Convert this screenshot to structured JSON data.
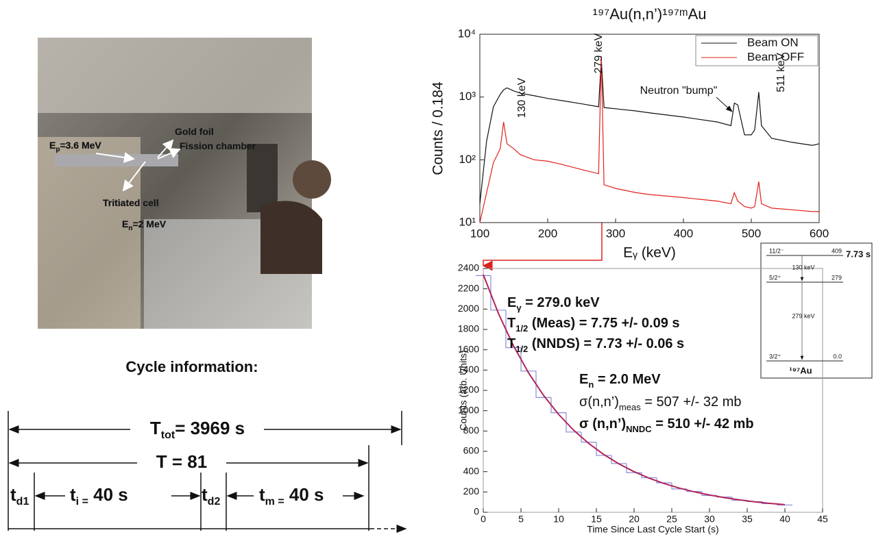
{
  "photo": {
    "labels": [
      [
        "E",
        "p",
        "=3.6 MeV"
      ],
      [
        "Gold foil"
      ],
      [
        "Fission chamber"
      ],
      [
        "Tritiated cell"
      ],
      [
        "E",
        "n",
        "=2 MeV"
      ]
    ]
  },
  "cycle": {
    "title": "Cycle information:",
    "total": [
      "T",
      "tot",
      "= 3969 s"
    ],
    "period": [
      "T = 81"
    ],
    "td1": [
      "t",
      "d1"
    ],
    "ti": [
      "t",
      "i =",
      " 40 s"
    ],
    "td2": [
      "t",
      "d2"
    ],
    "tm": [
      "t",
      "m =",
      " 40 s"
    ]
  },
  "chart_data": [
    {
      "type": "line",
      "title": "¹⁹⁷Au(n,n’)¹⁹⁷ᵐAu",
      "x_label": "Eᵧ (keV)",
      "y_label": "Counts / 0.184",
      "log_y": true,
      "legend": "top-right",
      "x": [
        100,
        110,
        120,
        130,
        135,
        140,
        150,
        160,
        180,
        200,
        220,
        250,
        275,
        279,
        283,
        300,
        330,
        350,
        400,
        450,
        470,
        475,
        480,
        490,
        500,
        505,
        511,
        515,
        530,
        560,
        590,
        600
      ],
      "series": [
        {
          "name": "Beam ON",
          "color": "#111111",
          "values": [
            20,
            200,
            700,
            1100,
            1300,
            1400,
            1250,
            1150,
            1050,
            950,
            880,
            780,
            700,
            4000,
            680,
            650,
            600,
            560,
            480,
            400,
            350,
            800,
            750,
            250,
            250,
            300,
            1200,
            350,
            220,
            190,
            170,
            180
          ]
        },
        {
          "name": "Beam OFF",
          "color": "#e0201b",
          "values": [
            10,
            30,
            90,
            150,
            400,
            180,
            150,
            120,
            100,
            95,
            85,
            70,
            60,
            4500,
            40,
            35,
            30,
            28,
            25,
            22,
            20,
            30,
            22,
            18,
            17,
            18,
            45,
            20,
            17,
            16,
            15,
            15
          ]
        }
      ],
      "xlim": [
        100,
        600
      ],
      "xticks": [
        100,
        200,
        300,
        400,
        500,
        600
      ],
      "ylim": [
        10,
        10000
      ],
      "yticks": [
        {
          "value": 10,
          "label": "10¹"
        },
        {
          "value": 100,
          "label": "10²"
        },
        {
          "value": 1000,
          "label": "10³"
        },
        {
          "value": 10000,
          "label": "10⁴"
        }
      ],
      "annotations": [
        {
          "text": "279 keV",
          "color": "#2a2a9a"
        },
        {
          "text": "130 keV",
          "color": "#2a2a9a"
        },
        {
          "text": "Neutron \"bump\"",
          "color": "#111111"
        },
        {
          "text": "511 keV",
          "color": "#111111"
        }
      ]
    },
    {
      "type": "line",
      "x_label": "Time Since Last Cycle Start (s)",
      "y_label": "Counts (arb. Units)",
      "x": [
        0,
        2,
        4,
        6,
        8,
        10,
        12,
        14,
        16,
        18,
        20,
        22,
        24,
        26,
        28,
        30,
        32,
        34,
        36,
        38,
        40
      ],
      "series": [
        {
          "color": "#8a8ad6",
          "style": "step",
          "values": [
            2330,
            1990,
            1620,
            1390,
            1130,
            980,
            790,
            690,
            560,
            480,
            390,
            340,
            290,
            230,
            205,
            165,
            150,
            118,
            105,
            85,
            72
          ]
        },
        {
          "color": "#b0245a",
          "style": "line",
          "values": [
            2340,
            1959,
            1640,
            1373,
            1150,
            963,
            807,
            677,
            568,
            476,
            400,
            336,
            283,
            238,
            201,
            170,
            144,
            122,
            103,
            88,
            75
          ]
        }
      ],
      "xlim": [
        0,
        45
      ],
      "xticks": [
        0,
        5,
        10,
        15,
        20,
        25,
        30,
        35,
        40,
        45
      ],
      "ylim": [
        0,
        2400
      ],
      "yticks": [
        0,
        200,
        400,
        600,
        800,
        1000,
        1200,
        1400,
        1600,
        1800,
        2000,
        2200,
        2400
      ],
      "annotations": [
        [
          "E",
          "γ",
          " = 279.0 keV"
        ],
        [
          "T",
          "1/2",
          " (Meas)  = 7.75 +/- 0.09 s"
        ],
        [
          "T",
          "1/2",
          " (NNDS) = 7.73 +/- 0.06 s"
        ],
        [
          "E",
          "n",
          " = 2.0 MeV"
        ],
        [
          "σ(n,n’)",
          "meas",
          " = 507 +/- 32 mb"
        ],
        [
          "σ (n,n’)",
          "NNDC",
          " = 510  +/- 42 mb"
        ]
      ],
      "inset": {
        "levels": [
          {
            "spin": "11/2⁻",
            "energy": "409"
          },
          {
            "spin": "5/2⁺",
            "energy": "279"
          },
          {
            "spin": "3/2⁺",
            "energy": "0.0"
          }
        ],
        "transitions": [
          "130 keV",
          "279 keV"
        ],
        "half_life": "7.73 s",
        "nucleus": "¹⁹⁷Au"
      }
    }
  ]
}
